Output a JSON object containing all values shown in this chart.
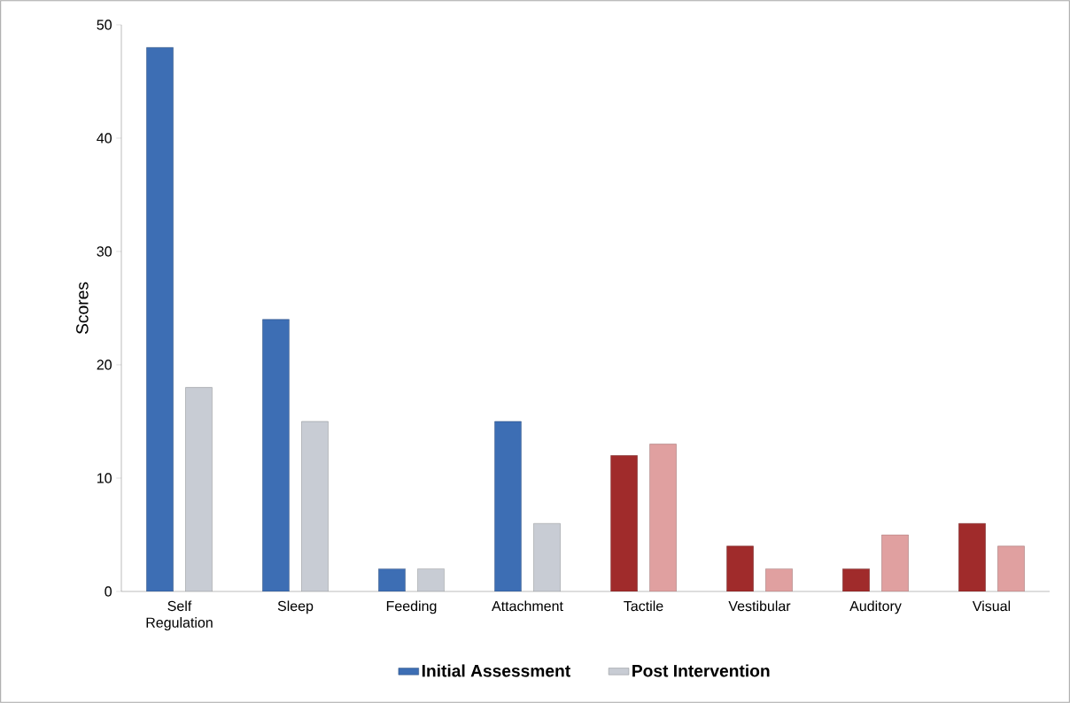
{
  "chart_data": {
    "type": "bar",
    "ylabel": "Scores",
    "categories": [
      "Self Regulation",
      "Sleep",
      "Feeding",
      "Attachment",
      "Tactile",
      "Vestibular",
      "Auditory",
      "Visual"
    ],
    "series": [
      {
        "name": "Initial Assessment",
        "color": "#3d6eb4",
        "colors": [
          "#3d6eb4",
          "#3d6eb4",
          "#3d6eb4",
          "#3d6eb4",
          "#a02b2b",
          "#a02b2b",
          "#a02b2b",
          "#a02b2b"
        ],
        "values": [
          48,
          24,
          2,
          15,
          12,
          4,
          2,
          6
        ]
      },
      {
        "name": "Post Intervention",
        "color": "#c8ccd4",
        "colors": [
          "#c8ccd4",
          "#c8ccd4",
          "#c8ccd4",
          "#c8ccd4",
          "#e0a0a0",
          "#e0a0a0",
          "#e0a0a0",
          "#e0a0a0"
        ],
        "values": [
          18,
          15,
          2,
          6,
          13,
          2,
          5,
          4
        ]
      }
    ],
    "ylim": [
      0,
      50
    ],
    "yticks": [
      0,
      10,
      20,
      30,
      40,
      50
    ],
    "legend": "bottom"
  }
}
